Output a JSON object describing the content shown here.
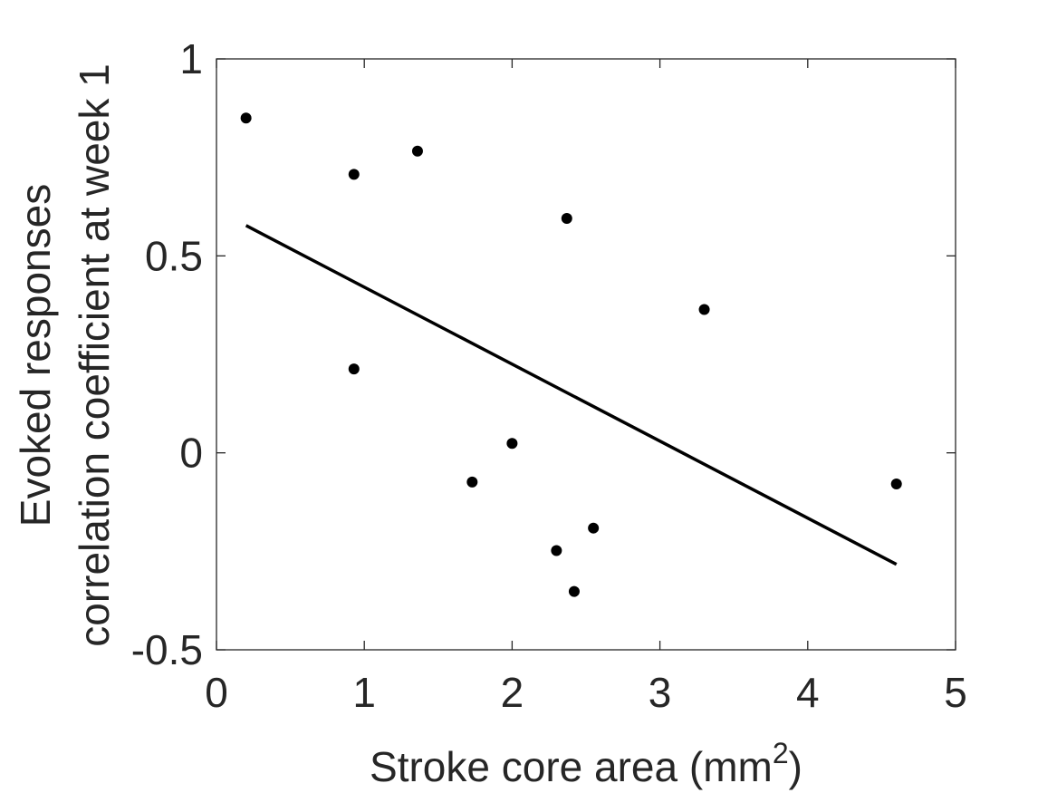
{
  "chart_data": {
    "type": "scatter",
    "title": "",
    "xlabel": "Stroke core area (mm",
    "xlabel_superscript": "2",
    "xlabel_suffix": ")",
    "ylabel_lines": [
      "Evoked responses",
      "correlation coefficient at week 1"
    ],
    "xlim": [
      0,
      5
    ],
    "ylim": [
      -0.5,
      1
    ],
    "xticks": [
      0,
      1,
      2,
      3,
      4,
      5
    ],
    "xtick_labels": [
      "0",
      "1",
      "2",
      "3",
      "4",
      "5"
    ],
    "yticks": [
      -0.5,
      0,
      0.5,
      1
    ],
    "ytick_labels": [
      "-0.5",
      "0",
      "0.5",
      "1"
    ],
    "grid": false,
    "series": [
      {
        "points": [
          {
            "x": 0.2,
            "y": 0.85
          },
          {
            "x": 0.93,
            "y": 0.707
          },
          {
            "x": 1.36,
            "y": 0.766
          },
          {
            "x": 2.37,
            "y": 0.595
          },
          {
            "x": 3.3,
            "y": 0.364
          },
          {
            "x": 0.93,
            "y": 0.213
          },
          {
            "x": 2.0,
            "y": 0.024
          },
          {
            "x": 1.73,
            "y": -0.074
          },
          {
            "x": 2.3,
            "y": -0.248
          },
          {
            "x": 2.42,
            "y": -0.352
          },
          {
            "x": 2.55,
            "y": -0.191
          },
          {
            "x": 4.6,
            "y": -0.079
          }
        ],
        "color": "#000000"
      }
    ],
    "fit_line": {
      "x": [
        0.2,
        4.6
      ],
      "y": [
        0.577,
        -0.283
      ],
      "color": "#000000"
    }
  }
}
